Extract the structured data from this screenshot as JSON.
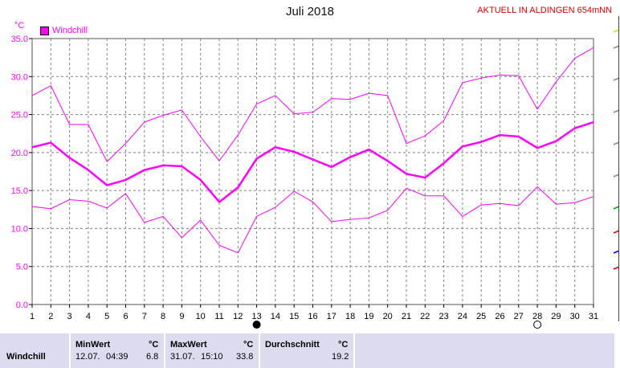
{
  "header": {
    "title": "Juli 2018",
    "live_label": "AKTUELL IN ALDINGEN 654mNN",
    "unit": "°C"
  },
  "colors": {
    "series": "#ff00ff",
    "grid": "#808080",
    "live": "#e00000",
    "stats_bg": "#dcdcf0"
  },
  "chart_data": {
    "type": "line",
    "title": "Juli 2018",
    "ylabel": "°C",
    "xlim": [
      1,
      31
    ],
    "ylim": [
      0,
      35
    ],
    "y_ticks": [
      "0.0",
      "5.0",
      "10.0",
      "15.0",
      "20.0",
      "25.0",
      "30.0",
      "35.0"
    ],
    "x": [
      1,
      2,
      3,
      4,
      5,
      6,
      7,
      8,
      9,
      10,
      11,
      12,
      13,
      14,
      15,
      16,
      17,
      18,
      19,
      20,
      21,
      22,
      23,
      24,
      25,
      26,
      27,
      28,
      29,
      30,
      31
    ],
    "grid": true,
    "legend": {
      "position": "top-left",
      "label": "Windchill"
    },
    "moon_phases": [
      {
        "day": 13,
        "phase": "new"
      },
      {
        "day": 28,
        "phase": "full"
      }
    ],
    "series": [
      {
        "name": "Windchill",
        "role": "max",
        "values": [
          27.5,
          28.8,
          23.7,
          23.7,
          18.8,
          21.2,
          24.0,
          24.9,
          25.6,
          22.1,
          18.9,
          22.3,
          26.4,
          27.5,
          25.1,
          25.3,
          27.1,
          27.0,
          27.8,
          27.5,
          21.2,
          22.2,
          24.2,
          29.2,
          29.8,
          30.2,
          30.1,
          25.7,
          29.3,
          32.4,
          33.8
        ]
      },
      {
        "name": "Windchill",
        "role": "average",
        "values": [
          20.7,
          21.3,
          19.3,
          17.7,
          15.7,
          16.4,
          17.7,
          18.3,
          18.2,
          16.4,
          13.5,
          15.4,
          19.2,
          20.7,
          20.1,
          19.1,
          18.1,
          19.4,
          20.4,
          18.9,
          17.2,
          16.7,
          18.6,
          20.8,
          21.4,
          22.3,
          22.1,
          20.6,
          21.5,
          23.2,
          24.0
        ]
      },
      {
        "name": "Windchill",
        "role": "min",
        "values": [
          12.9,
          12.6,
          13.8,
          13.6,
          12.7,
          14.6,
          10.8,
          11.6,
          8.8,
          11.1,
          7.8,
          6.8,
          11.6,
          12.8,
          14.9,
          13.5,
          10.9,
          11.2,
          11.4,
          12.4,
          15.3,
          14.3,
          14.3,
          11.6,
          13.1,
          13.3,
          13.0,
          15.5,
          13.2,
          13.4,
          14.2
        ]
      }
    ]
  },
  "stats": {
    "row_label": "Windchill",
    "min": {
      "header": "MinWert",
      "unit": "°C",
      "date": "12.07.",
      "time": "04:39",
      "value": "6.8"
    },
    "max": {
      "header": "MaxWert",
      "unit": "°C",
      "date": "31.07.",
      "time": "15:10",
      "value": "33.8"
    },
    "avg": {
      "header": "Durchschnitt",
      "unit": "°C",
      "value": "19.2"
    }
  }
}
